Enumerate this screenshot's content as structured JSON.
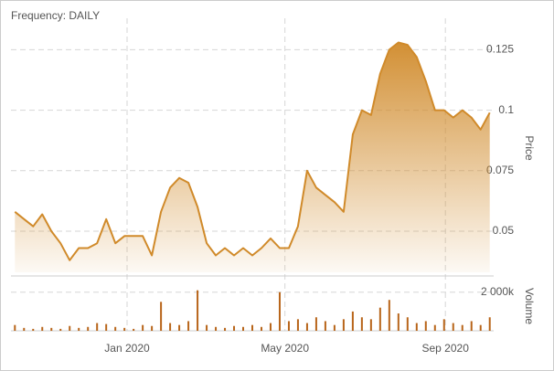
{
  "chart_data": {
    "type": "stock",
    "title": "Frequency: DAILY",
    "y_label": "Price",
    "volume_label": "Volume",
    "x": [
      "2019-10-07",
      "2019-10-14",
      "2019-10-21",
      "2019-10-28",
      "2019-11-04",
      "2019-11-11",
      "2019-11-18",
      "2019-11-25",
      "2019-12-02",
      "2019-12-09",
      "2019-12-16",
      "2019-12-23",
      "2019-12-30",
      "2020-01-06",
      "2020-01-13",
      "2020-01-20",
      "2020-01-27",
      "2020-02-03",
      "2020-02-10",
      "2020-02-17",
      "2020-02-24",
      "2020-03-02",
      "2020-03-09",
      "2020-03-16",
      "2020-03-23",
      "2020-03-30",
      "2020-04-06",
      "2020-04-13",
      "2020-04-20",
      "2020-04-27",
      "2020-05-04",
      "2020-05-11",
      "2020-05-18",
      "2020-05-25",
      "2020-06-01",
      "2020-06-08",
      "2020-06-15",
      "2020-06-22",
      "2020-06-29",
      "2020-07-06",
      "2020-07-13",
      "2020-07-20",
      "2020-07-27",
      "2020-08-03",
      "2020-08-10",
      "2020-08-17",
      "2020-08-24",
      "2020-08-31",
      "2020-09-07",
      "2020-09-14",
      "2020-09-21",
      "2020-09-28",
      "2020-10-05"
    ],
    "series": [
      {
        "name": "Price",
        "color": "#d08a2a",
        "values": [
          0.058,
          0.055,
          0.052,
          0.057,
          0.05,
          0.045,
          0.038,
          0.043,
          0.043,
          0.045,
          0.055,
          0.045,
          0.048,
          0.048,
          0.048,
          0.04,
          0.058,
          0.068,
          0.072,
          0.07,
          0.06,
          0.045,
          0.04,
          0.043,
          0.04,
          0.043,
          0.04,
          0.043,
          0.047,
          0.043,
          0.043,
          0.052,
          0.075,
          0.068,
          0.065,
          0.062,
          0.058,
          0.09,
          0.1,
          0.098,
          0.115,
          0.125,
          0.128,
          0.127,
          0.122,
          0.112,
          0.1,
          0.1,
          0.097,
          0.1,
          0.097,
          0.092,
          0.099
        ]
      },
      {
        "name": "Volume",
        "color": "#b8651a",
        "axis": "volume",
        "values": [
          300000,
          150000,
          100000,
          200000,
          150000,
          100000,
          250000,
          150000,
          200000,
          400000,
          350000,
          200000,
          150000,
          100000,
          300000,
          250000,
          1500000,
          400000,
          300000,
          500000,
          2100000,
          300000,
          200000,
          150000,
          250000,
          200000,
          300000,
          200000,
          400000,
          2000000,
          500000,
          600000,
          400000,
          700000,
          500000,
          300000,
          600000,
          1000000,
          700000,
          600000,
          1200000,
          1600000,
          900000,
          700000,
          400000,
          500000,
          300000,
          600000,
          400000,
          300000,
          500000,
          300000,
          700000
        ]
      }
    ],
    "xlim": [
      "2019-10-04",
      "2020-10-08"
    ],
    "xticks": [
      {
        "value": "2020-01-01",
        "label": "Jan 2020"
      },
      {
        "value": "2020-05-01",
        "label": "May 2020"
      },
      {
        "value": "2020-09-01",
        "label": "Sep 2020"
      }
    ],
    "ylim": [
      0.033,
      0.138
    ],
    "yticks": [
      0.05,
      0.075,
      0.1,
      0.125
    ],
    "volume_lim": [
      0,
      2700000
    ],
    "volume_ticks": [
      {
        "value": 2000000,
        "label": "2 000k"
      }
    ],
    "grid": true
  }
}
